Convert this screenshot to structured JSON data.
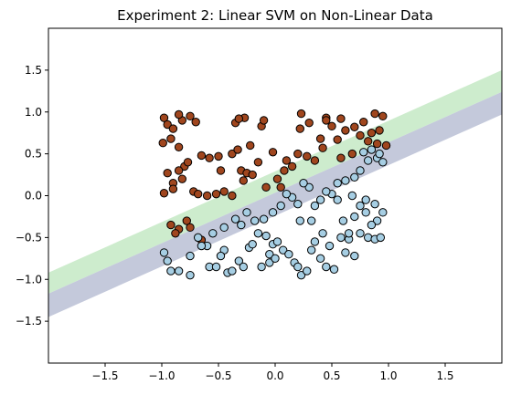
{
  "chart_data": {
    "type": "scatter",
    "title": "Experiment 2: Linear SVM on Non-Linear Data",
    "xlabel": "",
    "ylabel": "",
    "xlim": [
      -2.0,
      2.0
    ],
    "ylim": [
      -2.0,
      2.0
    ],
    "x_ticks": [
      -1.5,
      -1.0,
      -0.5,
      0.0,
      0.5,
      1.0,
      1.5
    ],
    "y_ticks": [
      -1.5,
      -1.0,
      -0.5,
      0.0,
      0.5,
      1.0,
      1.5
    ],
    "x_tick_labels": [
      "−1.5",
      "−1.0",
      "−0.5",
      "0.0",
      "0.5",
      "1.0",
      "1.5"
    ],
    "y_tick_labels": [
      "−1.5",
      "−1.0",
      "−0.5",
      "0.0",
      "0.5",
      "1.0",
      "1.5"
    ],
    "grid": false,
    "decision_regions": {
      "colors": {
        "upper_band": "#cdeccd",
        "lower_band": "#c4c9db"
      },
      "upper_band_edges": [
        {
          "x1": -2.0,
          "y1": -0.92,
          "x2": 2.0,
          "y2": 1.5
        },
        {
          "x1": -2.0,
          "y1": -1.17,
          "x2": 2.0,
          "y2": 1.24
        }
      ],
      "lower_band_edges": [
        {
          "x1": -2.0,
          "y1": -1.17,
          "x2": 2.0,
          "y2": 1.24
        },
        {
          "x1": -2.0,
          "y1": -1.45,
          "x2": 2.0,
          "y2": 0.97
        }
      ]
    },
    "series": [
      {
        "class": "brown",
        "color": "#a0461e",
        "points": [
          [
            -0.98,
            0.93
          ],
          [
            -0.95,
            0.85
          ],
          [
            -0.9,
            0.8
          ],
          [
            -0.82,
            0.9
          ],
          [
            -0.85,
            0.97
          ],
          [
            -0.99,
            0.63
          ],
          [
            -0.92,
            0.68
          ],
          [
            -0.85,
            0.58
          ],
          [
            -0.75,
            0.95
          ],
          [
            -0.7,
            0.88
          ],
          [
            -0.95,
            0.27
          ],
          [
            -0.8,
            0.35
          ],
          [
            -0.85,
            0.3
          ],
          [
            -0.77,
            0.4
          ],
          [
            -0.9,
            0.15
          ],
          [
            -0.82,
            0.2
          ],
          [
            -0.98,
            0.03
          ],
          [
            -0.9,
            0.08
          ],
          [
            -0.72,
            0.05
          ],
          [
            -0.68,
            0.02
          ],
          [
            -0.6,
            0.0
          ],
          [
            -0.52,
            0.02
          ],
          [
            -0.45,
            0.05
          ],
          [
            -0.38,
            0.0
          ],
          [
            -0.92,
            -0.35
          ],
          [
            -0.85,
            -0.4
          ],
          [
            -0.78,
            -0.3
          ],
          [
            -0.75,
            -0.38
          ],
          [
            -0.65,
            -0.53
          ],
          [
            -0.88,
            -0.45
          ],
          [
            -0.58,
            0.45
          ],
          [
            -0.5,
            0.47
          ],
          [
            -0.48,
            0.3
          ],
          [
            -0.38,
            0.5
          ],
          [
            -0.33,
            0.55
          ],
          [
            -0.3,
            0.3
          ],
          [
            -0.25,
            0.27
          ],
          [
            -0.2,
            0.25
          ],
          [
            -0.22,
            0.6
          ],
          [
            -0.35,
            0.87
          ],
          [
            -0.27,
            0.93
          ],
          [
            -0.32,
            0.92
          ],
          [
            -0.12,
            0.83
          ],
          [
            -0.02,
            0.52
          ],
          [
            -0.15,
            0.4
          ],
          [
            -0.08,
            0.1
          ],
          [
            0.02,
            0.2
          ],
          [
            0.08,
            0.3
          ],
          [
            0.15,
            0.35
          ],
          [
            0.22,
            0.8
          ],
          [
            0.23,
            0.98
          ],
          [
            0.3,
            0.87
          ],
          [
            0.4,
            0.68
          ],
          [
            0.45,
            0.93
          ],
          [
            0.5,
            0.83
          ],
          [
            0.58,
            0.92
          ],
          [
            0.62,
            0.78
          ],
          [
            0.75,
            0.72
          ],
          [
            0.85,
            0.75
          ],
          [
            0.92,
            0.78
          ],
          [
            0.88,
            0.98
          ],
          [
            0.78,
            0.88
          ],
          [
            0.95,
            0.95
          ],
          [
            0.98,
            0.6
          ],
          [
            0.9,
            0.62
          ],
          [
            0.82,
            0.65
          ],
          [
            0.55,
            0.67
          ],
          [
            0.42,
            0.57
          ],
          [
            0.35,
            0.42
          ],
          [
            0.28,
            0.47
          ],
          [
            0.1,
            0.42
          ],
          [
            0.2,
            0.5
          ],
          [
            0.58,
            0.45
          ],
          [
            0.68,
            0.5
          ],
          [
            0.05,
            0.1
          ],
          [
            -0.28,
            0.18
          ],
          [
            -0.1,
            0.9
          ],
          [
            0.45,
            0.9
          ],
          [
            0.7,
            0.82
          ],
          [
            -0.65,
            0.48
          ]
        ]
      },
      {
        "class": "lightblue",
        "color": "#a6cee3",
        "points": [
          [
            -0.98,
            -0.68
          ],
          [
            -0.95,
            -0.78
          ],
          [
            -0.92,
            -0.9
          ],
          [
            -0.85,
            -0.9
          ],
          [
            -0.75,
            -0.95
          ],
          [
            -0.68,
            -0.5
          ],
          [
            -0.6,
            -0.6
          ],
          [
            -0.58,
            -0.85
          ],
          [
            -0.52,
            -0.85
          ],
          [
            -0.45,
            -0.65
          ],
          [
            -0.42,
            -0.92
          ],
          [
            -0.38,
            -0.9
          ],
          [
            -0.32,
            -0.78
          ],
          [
            -0.28,
            -0.85
          ],
          [
            -0.23,
            -0.62
          ],
          [
            -0.2,
            -0.58
          ],
          [
            -0.15,
            -0.45
          ],
          [
            -0.12,
            -0.85
          ],
          [
            -0.05,
            -0.8
          ],
          [
            -0.02,
            -0.58
          ],
          [
            0.02,
            -0.55
          ],
          [
            0.07,
            -0.65
          ],
          [
            0.12,
            -0.7
          ],
          [
            0.17,
            -0.8
          ],
          [
            0.2,
            -0.85
          ],
          [
            0.23,
            -0.95
          ],
          [
            0.28,
            -0.9
          ],
          [
            0.32,
            -0.65
          ],
          [
            0.35,
            -0.55
          ],
          [
            0.4,
            -0.75
          ],
          [
            0.45,
            -0.85
          ],
          [
            0.52,
            -0.88
          ],
          [
            0.58,
            -0.5
          ],
          [
            0.62,
            -0.68
          ],
          [
            0.65,
            -0.52
          ],
          [
            0.7,
            -0.72
          ],
          [
            0.75,
            -0.45
          ],
          [
            0.82,
            -0.5
          ],
          [
            0.88,
            -0.52
          ],
          [
            0.93,
            -0.5
          ],
          [
            0.95,
            -0.2
          ],
          [
            0.9,
            -0.3
          ],
          [
            0.85,
            -0.35
          ],
          [
            0.8,
            -0.2
          ],
          [
            0.75,
            -0.12
          ],
          [
            0.7,
            -0.25
          ],
          [
            0.65,
            -0.45
          ],
          [
            0.6,
            -0.3
          ],
          [
            0.55,
            -0.05
          ],
          [
            0.5,
            0.02
          ],
          [
            0.45,
            0.05
          ],
          [
            0.4,
            -0.05
          ],
          [
            0.35,
            -0.12
          ],
          [
            0.3,
            0.1
          ],
          [
            0.25,
            0.15
          ],
          [
            0.2,
            -0.1
          ],
          [
            0.15,
            -0.02
          ],
          [
            0.1,
            0.02
          ],
          [
            0.05,
            -0.12
          ],
          [
            -0.02,
            -0.2
          ],
          [
            -0.1,
            -0.28
          ],
          [
            -0.18,
            -0.3
          ],
          [
            -0.25,
            -0.2
          ],
          [
            -0.35,
            -0.28
          ],
          [
            -0.45,
            -0.38
          ],
          [
            -0.55,
            -0.45
          ],
          [
            -0.65,
            -0.6
          ],
          [
            -0.75,
            -0.72
          ],
          [
            -0.48,
            -0.72
          ],
          [
            0.55,
            0.15
          ],
          [
            0.62,
            0.18
          ],
          [
            0.7,
            0.22
          ],
          [
            0.75,
            0.3
          ],
          [
            0.82,
            0.42
          ],
          [
            0.78,
            0.52
          ],
          [
            0.9,
            0.45
          ],
          [
            0.85,
            0.55
          ],
          [
            0.92,
            0.5
          ],
          [
            0.8,
            -0.05
          ],
          [
            0.88,
            -0.1
          ],
          [
            -0.05,
            -0.7
          ],
          [
            0.0,
            -0.75
          ],
          [
            0.48,
            -0.6
          ],
          [
            -0.3,
            -0.35
          ],
          [
            0.22,
            -0.3
          ],
          [
            0.32,
            -0.3
          ],
          [
            0.42,
            -0.45
          ],
          [
            0.68,
            0.0
          ],
          [
            0.95,
            0.4
          ],
          [
            -0.08,
            -0.48
          ]
        ]
      }
    ]
  }
}
